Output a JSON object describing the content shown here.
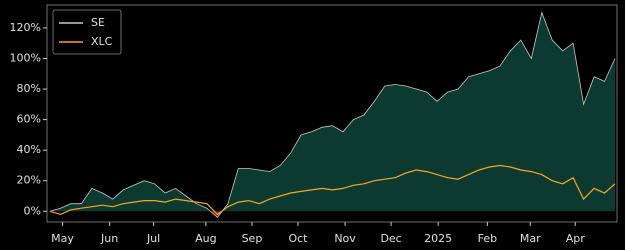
{
  "chart_data": {
    "type": "line",
    "series": [
      {
        "name": "SE",
        "color": "#c8c8c8",
        "fill": "#0d3a30",
        "negative_fill": "#8b1a1a",
        "values": [
          0,
          2,
          5,
          5,
          15,
          12,
          8,
          14,
          17,
          20,
          18,
          12,
          15,
          10,
          5,
          2,
          -4,
          5,
          28,
          28,
          27,
          26,
          30,
          38,
          50,
          52,
          55,
          56,
          52,
          60,
          63,
          72,
          82,
          83,
          82,
          80,
          78,
          72,
          78,
          80,
          88,
          90,
          92,
          95,
          105,
          112,
          100,
          130,
          112,
          105,
          110,
          70,
          88,
          85,
          100
        ]
      },
      {
        "name": "XLC",
        "color": "#f5a623",
        "values": [
          0,
          -2,
          1,
          2,
          3,
          4,
          3,
          5,
          6,
          7,
          7,
          6,
          8,
          7,
          6,
          5,
          -2,
          3,
          6,
          7,
          5,
          8,
          10,
          12,
          13,
          14,
          15,
          14,
          15,
          17,
          18,
          20,
          21,
          22,
          25,
          27,
          26,
          24,
          22,
          21,
          24,
          27,
          29,
          30,
          29,
          27,
          26,
          24,
          20,
          18,
          22,
          8,
          15,
          12,
          18
        ]
      }
    ],
    "xticks": [
      {
        "value": 1.2,
        "label": "May"
      },
      {
        "value": 5.7,
        "label": "Jun"
      },
      {
        "value": 9.9,
        "label": "Jul"
      },
      {
        "value": 14.9,
        "label": "Aug"
      },
      {
        "value": 19.3,
        "label": "Sep"
      },
      {
        "value": 23.7,
        "label": "Oct"
      },
      {
        "value": 28.2,
        "label": "Nov"
      },
      {
        "value": 32.6,
        "label": "Dec"
      },
      {
        "value": 37.1,
        "label": "2025"
      },
      {
        "value": 41.8,
        "label": "Feb"
      },
      {
        "value": 45.9,
        "label": "Mar"
      },
      {
        "value": 50.2,
        "label": "Apr"
      }
    ],
    "ylim": [
      -7,
      135
    ],
    "yticks": [
      {
        "value": 0,
        "label": "0%"
      },
      {
        "value": 20,
        "label": "20%"
      },
      {
        "value": 40,
        "label": "40%"
      },
      {
        "value": 60,
        "label": "60%"
      },
      {
        "value": 80,
        "label": "80%"
      },
      {
        "value": 100,
        "label": "100%"
      },
      {
        "value": 120,
        "label": "120%"
      }
    ],
    "legend": "upper left"
  }
}
